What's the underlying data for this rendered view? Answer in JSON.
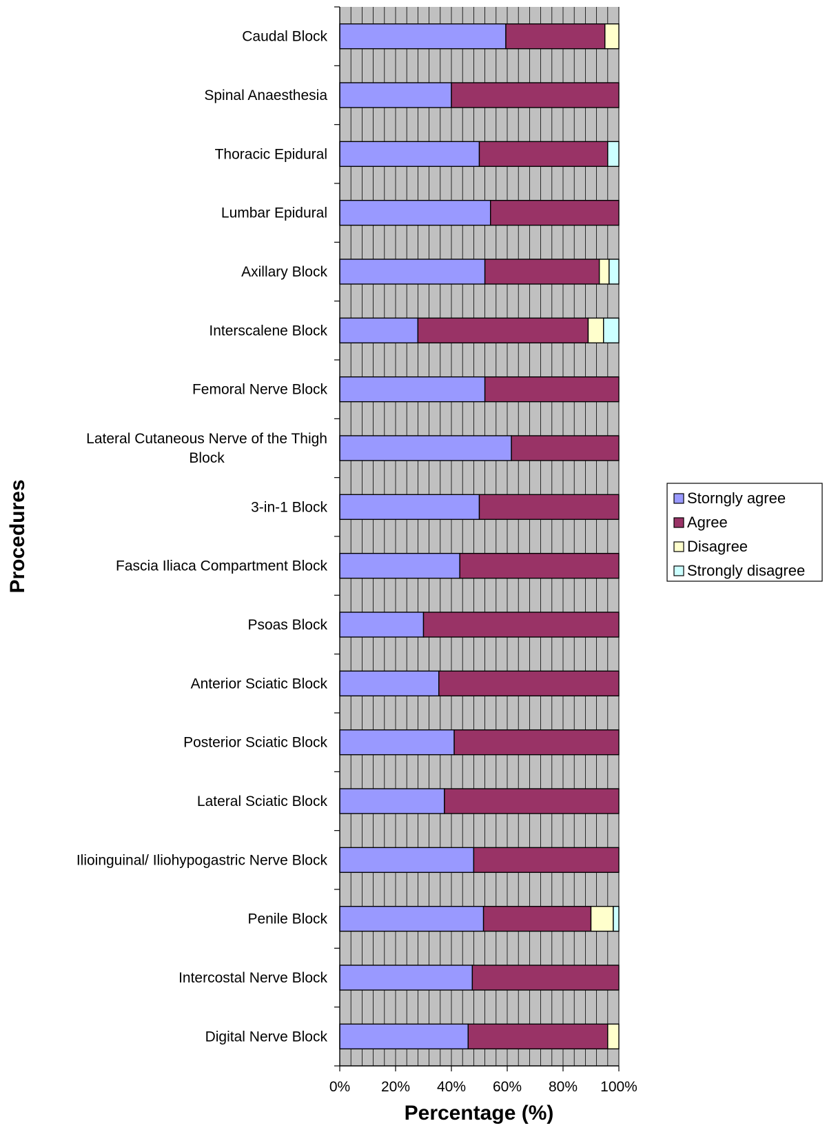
{
  "chart_data": {
    "type": "bar",
    "orientation": "horizontal",
    "stacked": "percent",
    "title": "",
    "xlabel": "Percentage (%)",
    "ylabel": "Procedures",
    "xlim": [
      0,
      100
    ],
    "x_ticks": [
      "0%",
      "20%",
      "40%",
      "60%",
      "80%",
      "100%"
    ],
    "grid": "vertical",
    "legend_position": "right",
    "categories": [
      [
        "Caudal Block"
      ],
      [
        "Spinal Anaesthesia"
      ],
      [
        "Thoracic Epidural"
      ],
      [
        "Lumbar Epidural"
      ],
      [
        "Axillary Block"
      ],
      [
        "Interscalene Block"
      ],
      [
        "Femoral Nerve Block"
      ],
      [
        "Lateral Cutaneous Nerve of the Thigh",
        "Block"
      ],
      [
        "3-in-1 Block"
      ],
      [
        "Fascia Iliaca  Compartment Block"
      ],
      [
        "Psoas Block"
      ],
      [
        "Anterior Sciatic Block"
      ],
      [
        "Posterior Sciatic Block"
      ],
      [
        "Lateral Sciatic Block"
      ],
      [
        "Ilioinguinal/ Iliohypogastric Nerve Block"
      ],
      [
        "Penile Block"
      ],
      [
        "Intercostal Nerve Block"
      ],
      [
        "Digital Nerve Block"
      ]
    ],
    "series": [
      {
        "name": "Storngly agree",
        "color": "#9999FF",
        "values": [
          59.5,
          40,
          50,
          54,
          52,
          28,
          52,
          61.5,
          50,
          43,
          30,
          35.5,
          41,
          37.5,
          48,
          51.5,
          47.5,
          46
        ]
      },
      {
        "name": "Agree",
        "color": "#993366",
        "values": [
          35.5,
          60,
          46,
          46,
          41,
          61,
          48,
          38.5,
          50,
          57,
          70,
          64.5,
          59,
          62.5,
          52,
          38.5,
          52.5,
          50
        ]
      },
      {
        "name": "Disagree",
        "color": "#FFFFCC",
        "values": [
          5,
          0,
          0,
          0,
          3.5,
          5.5,
          0,
          0,
          0,
          0,
          0,
          0,
          0,
          0,
          0,
          8,
          0,
          4
        ]
      },
      {
        "name": "Strongly disagree",
        "color": "#CCFFFF",
        "values": [
          0,
          0,
          4,
          0,
          3.5,
          5.5,
          0,
          0,
          0,
          0,
          0,
          0,
          0,
          0,
          0,
          2,
          0,
          0
        ]
      }
    ],
    "plot_background": "#C0C0C0"
  }
}
